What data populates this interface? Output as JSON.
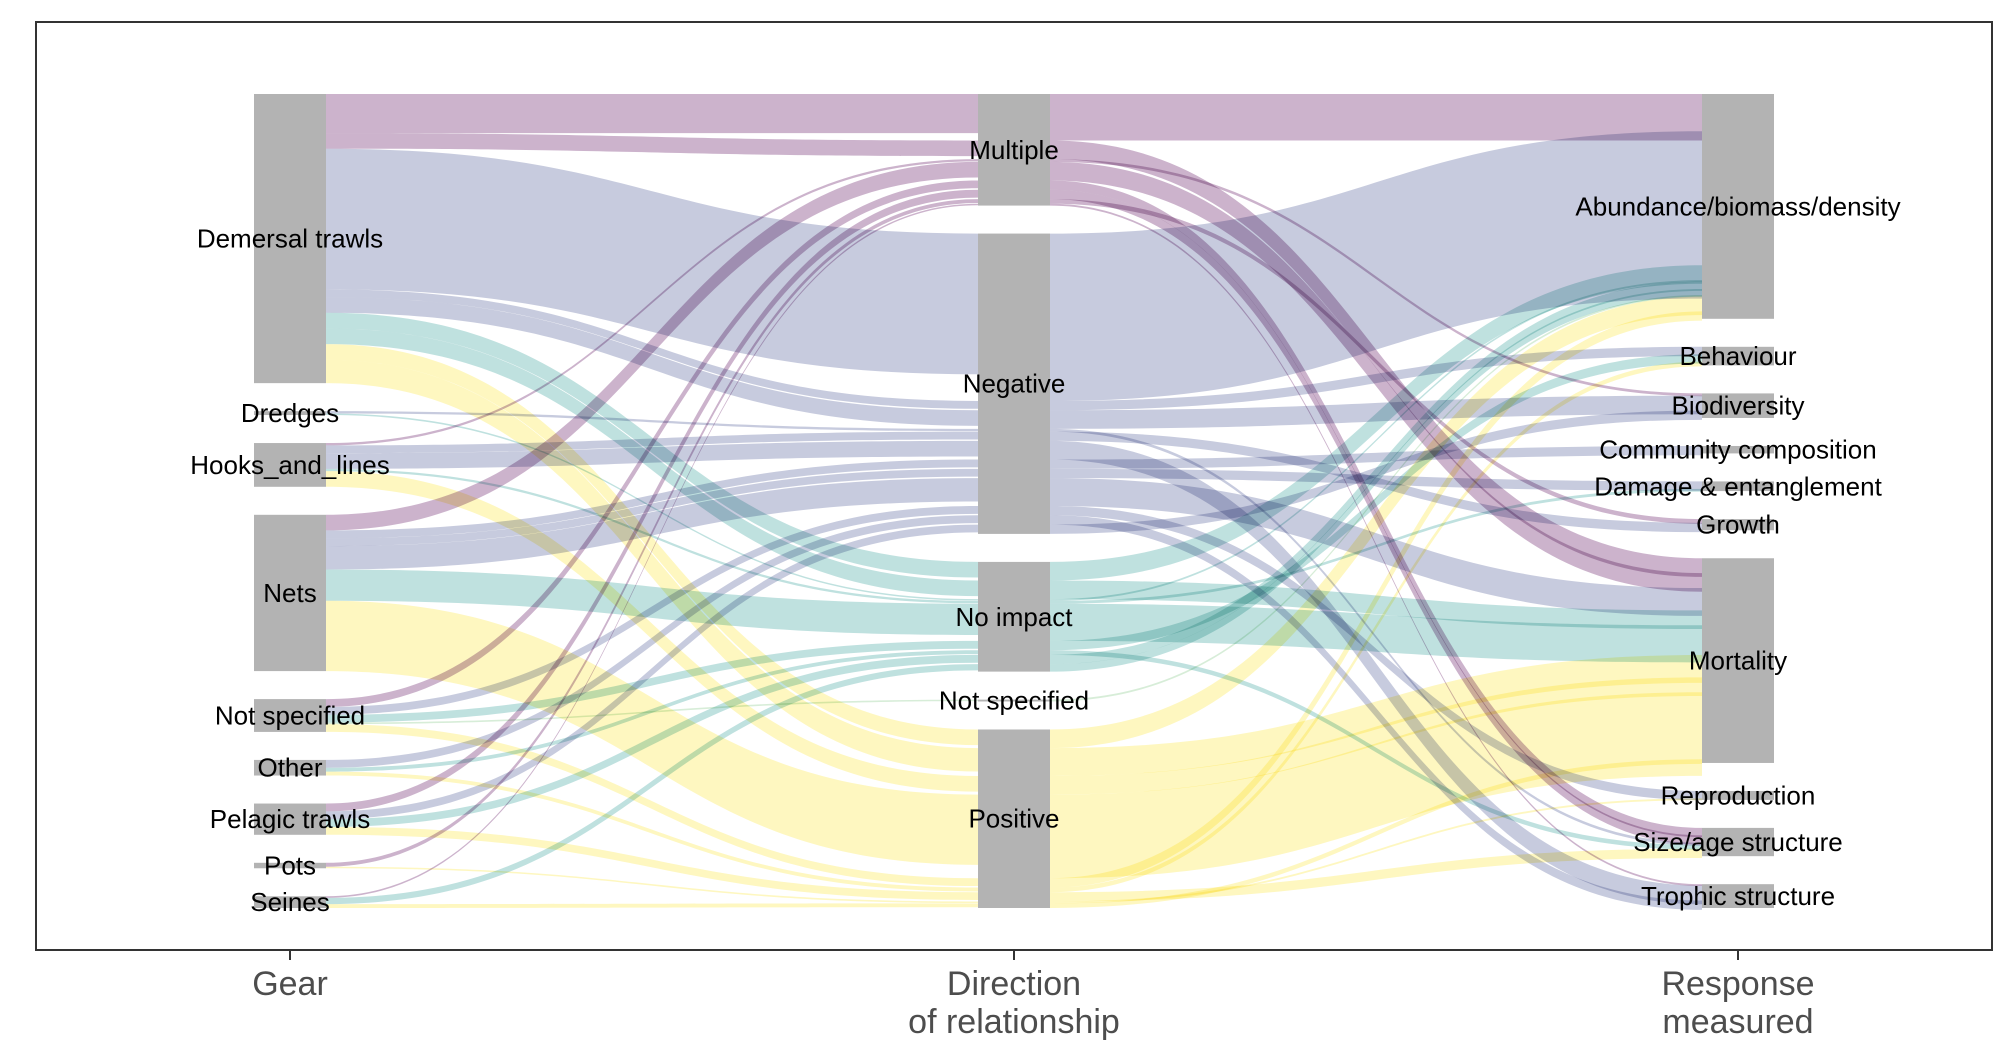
{
  "chart_data": {
    "type": "alluvial",
    "axes": [
      {
        "key": "gear",
        "label_lines": [
          "Gear"
        ]
      },
      {
        "key": "direction",
        "label_lines": [
          "Direction",
          "of relationship"
        ]
      },
      {
        "key": "response",
        "label_lines": [
          "Response",
          "measured"
        ]
      }
    ],
    "nodes": {
      "gear": [
        "Demersal trawls",
        "Dredges",
        "Hooks_and_lines",
        "Nets",
        "Not specified",
        "Other",
        "Pelagic trawls",
        "Pots",
        "Seines"
      ],
      "direction": [
        "Multiple",
        "Negative",
        "No impact",
        "Not specified",
        "Positive"
      ],
      "response": [
        "Abundance/biomass/density",
        "Behaviour",
        "Biodiversity",
        "Community composition",
        "Damage & entanglement",
        "Growth",
        "Mortality",
        "Reproduction",
        "Size/age structure",
        "Trophic structure"
      ]
    },
    "series": [
      {
        "name": "Multiple",
        "color": "#b996b9"
      },
      {
        "name": "Negative",
        "color": "#b2b7d1"
      },
      {
        "name": "No impact",
        "color": "#a6d5d2"
      },
      {
        "name": "Not specified",
        "color": "#c8e6c9"
      },
      {
        "name": "Positive",
        "color": "#fdf4a8"
      }
    ],
    "flows": [
      {
        "gear": "Demersal trawls",
        "direction": "Multiple",
        "response": "Abundance/biomass/density",
        "value": 5
      },
      {
        "gear": "Demersal trawls",
        "direction": "Multiple",
        "response": "Mortality",
        "value": 2
      },
      {
        "gear": "Demersal trawls",
        "direction": "Negative",
        "response": "Abundance/biomass/density",
        "value": 18
      },
      {
        "gear": "Demersal trawls",
        "direction": "Negative",
        "response": "Behaviour",
        "value": 1
      },
      {
        "gear": "Demersal trawls",
        "direction": "Negative",
        "response": "Biodiversity",
        "value": 2
      },
      {
        "gear": "Demersal trawls",
        "direction": "No impact",
        "response": "Abundance/biomass/density",
        "value": 2
      },
      {
        "gear": "Demersal trawls",
        "direction": "No impact",
        "response": "Mortality",
        "value": 2
      },
      {
        "gear": "Demersal trawls",
        "direction": "Positive",
        "response": "Abundance/biomass/density",
        "value": 2
      },
      {
        "gear": "Demersal trawls",
        "direction": "Positive",
        "response": "Mortality",
        "value": 3
      },
      {
        "gear": "Dredges",
        "direction": "Negative",
        "response": "Size/age structure",
        "value": 0.3
      },
      {
        "gear": "Dredges",
        "direction": "No impact",
        "response": "Abundance/biomass/density",
        "value": 0.2
      },
      {
        "gear": "Hooks_and_lines",
        "direction": "Multiple",
        "response": "Biodiversity",
        "value": 0.3
      },
      {
        "gear": "Hooks_and_lines",
        "direction": "Negative",
        "response": "Growth",
        "value": 1
      },
      {
        "gear": "Hooks_and_lines",
        "direction": "Negative",
        "response": "Trophic structure",
        "value": 2
      },
      {
        "gear": "Hooks_and_lines",
        "direction": "No impact",
        "response": "Damage & entanglement",
        "value": 0.3
      },
      {
        "gear": "Hooks_and_lines",
        "direction": "Positive",
        "response": "Mortality",
        "value": 2
      },
      {
        "gear": "Nets",
        "direction": "Multiple",
        "response": "Mortality",
        "value": 2
      },
      {
        "gear": "Nets",
        "direction": "Negative",
        "response": "Community composition",
        "value": 1
      },
      {
        "gear": "Nets",
        "direction": "Negative",
        "response": "Damage & entanglement",
        "value": 1
      },
      {
        "gear": "Nets",
        "direction": "Negative",
        "response": "Mortality",
        "value": 3
      },
      {
        "gear": "Nets",
        "direction": "No impact",
        "response": "Mortality",
        "value": 4
      },
      {
        "gear": "Nets",
        "direction": "Positive",
        "response": "Mortality",
        "value": 9
      },
      {
        "gear": "Not specified",
        "direction": "Multiple",
        "response": "Size/age structure",
        "value": 1
      },
      {
        "gear": "Not specified",
        "direction": "Negative",
        "response": "Reproduction",
        "value": 1
      },
      {
        "gear": "Not specified",
        "direction": "No impact",
        "response": "Behaviour",
        "value": 1
      },
      {
        "gear": "Not specified",
        "direction": "Not specified",
        "response": "Abundance/biomass/density",
        "value": 0.2
      },
      {
        "gear": "Not specified",
        "direction": "Positive",
        "response": "Abundance/biomass/density",
        "value": 1
      },
      {
        "gear": "Other",
        "direction": "Negative",
        "response": "Trophic structure",
        "value": 1
      },
      {
        "gear": "Other",
        "direction": "No impact",
        "response": "Size/age structure",
        "value": 0.5
      },
      {
        "gear": "Other",
        "direction": "Positive",
        "response": "Behaviour",
        "value": 0.5
      },
      {
        "gear": "Pelagic trawls",
        "direction": "Multiple",
        "response": "Size/age structure",
        "value": 1
      },
      {
        "gear": "Pelagic trawls",
        "direction": "Negative",
        "response": "Biodiversity",
        "value": 1
      },
      {
        "gear": "Pelagic trawls",
        "direction": "No impact",
        "response": "Abundance/biomass/density",
        "value": 1
      },
      {
        "gear": "Pelagic trawls",
        "direction": "Positive",
        "response": "Size/age structure",
        "value": 1
      },
      {
        "gear": "Pots",
        "direction": "Multiple",
        "response": "Growth",
        "value": 0.5
      },
      {
        "gear": "Pots",
        "direction": "Positive",
        "response": "Reproduction",
        "value": 0.2
      },
      {
        "gear": "Seines",
        "direction": "Multiple",
        "response": "Trophic structure",
        "value": 0.2
      },
      {
        "gear": "Seines",
        "direction": "No impact",
        "response": "Abundance/biomass/density",
        "value": 0.8
      },
      {
        "gear": "Seines",
        "direction": "Positive",
        "response": "Mortality",
        "value": 0.5
      }
    ],
    "grid": false,
    "legend": "none"
  }
}
